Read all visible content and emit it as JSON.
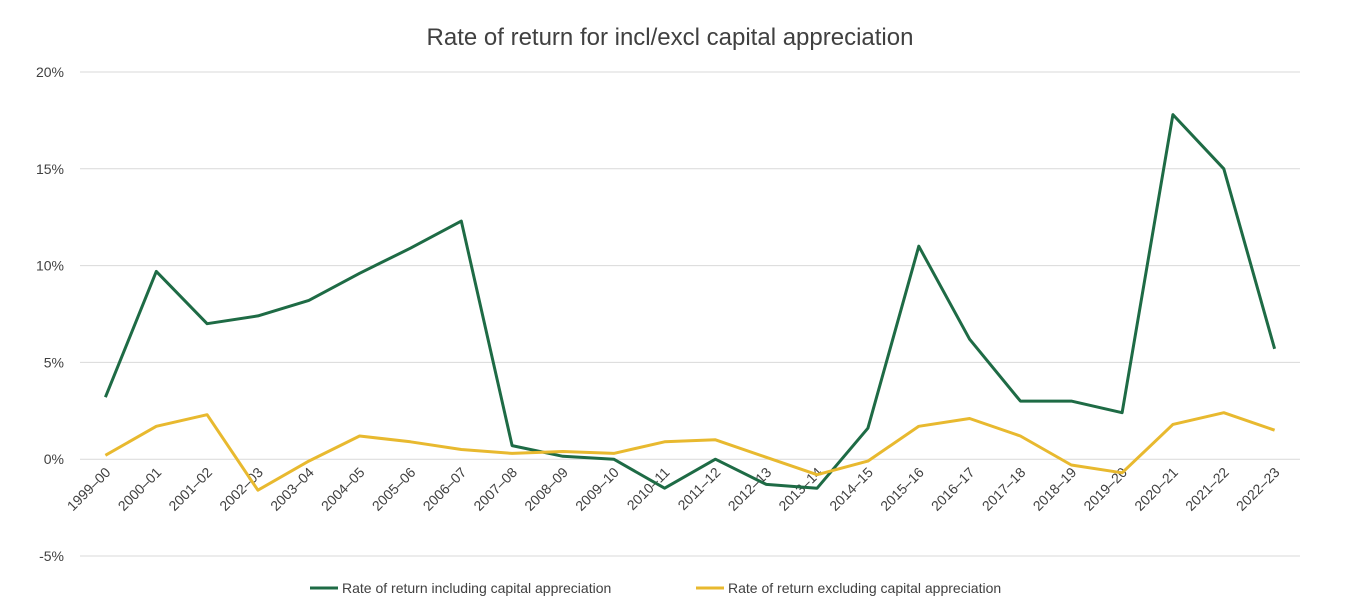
{
  "chart_data": {
    "type": "line",
    "title": "Rate of return for incl/excl capital appreciation",
    "xlabel": "",
    "ylabel": "",
    "categories": [
      "1999–00",
      "2000–01",
      "2001–02",
      "2002–03",
      "2003–04",
      "2004–05",
      "2005–06",
      "2006–07",
      "2007–08",
      "2008–09",
      "2009–10",
      "2010–11",
      "2011–12",
      "2012–13",
      "2013–14",
      "2014–15",
      "2015–16",
      "2016–17",
      "2017–18",
      "2018–19",
      "2019–20",
      "2020–21",
      "2021–22",
      "2022–23"
    ],
    "y_ticks": [
      "20%",
      "15%",
      "10%",
      "5%",
      "0%",
      "-5%"
    ],
    "ylim": [
      -5,
      20
    ],
    "grid": true,
    "legend_position": "bottom",
    "series": [
      {
        "name": "Rate of return including capital appreciation",
        "color": "#1e6b45",
        "values": [
          3.2,
          9.7,
          7.0,
          7.4,
          8.2,
          9.6,
          10.9,
          12.3,
          0.7,
          0.15,
          0.0,
          -1.5,
          0.0,
          -1.3,
          -1.5,
          1.6,
          11.0,
          6.2,
          3.0,
          3.0,
          2.4,
          17.8,
          15.0,
          5.7
        ]
      },
      {
        "name": "Rate of return excluding capital appreciation",
        "color": "#e8b92f",
        "values": [
          0.2,
          1.7,
          2.3,
          -1.6,
          -0.1,
          1.2,
          0.9,
          0.5,
          0.3,
          0.4,
          0.3,
          0.9,
          1.0,
          0.1,
          -0.8,
          -0.1,
          1.7,
          2.1,
          1.2,
          -0.3,
          -0.7,
          1.8,
          2.4,
          1.5
        ]
      }
    ]
  }
}
